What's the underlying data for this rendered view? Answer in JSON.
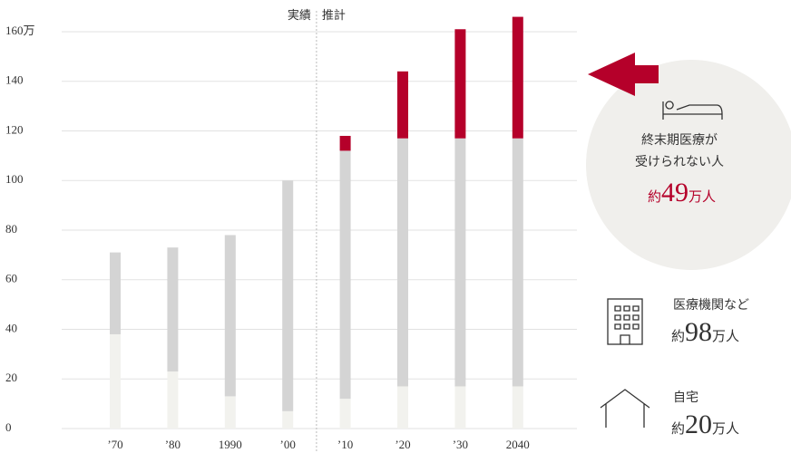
{
  "chart_data": {
    "type": "stacked_bar",
    "categories": [
      "’70",
      "’80",
      "1990",
      "’00",
      "’10",
      "’20",
      "’30",
      "2040"
    ],
    "series": [
      {
        "name": "自宅",
        "color": "#f2f2ee",
        "values": [
          38,
          23,
          13,
          7,
          12,
          17,
          17,
          17
        ],
        "note": {
          "prefix": "約",
          "number": 20,
          "unit": "万人"
        }
      },
      {
        "name": "医療機関など",
        "color": "#d4d4d4",
        "values": [
          33,
          50,
          65,
          93,
          100,
          100,
          100,
          100
        ],
        "note": {
          "prefix": "約",
          "number": 98,
          "unit": "万人"
        }
      },
      {
        "name": "終末期医療が\n受けられない人",
        "color": "#b5002a",
        "values": [
          null,
          null,
          null,
          null,
          6,
          27,
          44,
          49
        ],
        "note": {
          "prefix": "約",
          "number": 49,
          "unit": "万人"
        }
      }
    ],
    "divider": {
      "left": "実績",
      "right": "推計"
    },
    "ylim": [
      0,
      160
    ],
    "yticks": [
      0,
      20,
      40,
      60,
      80,
      100,
      120,
      140,
      {
        "value": 160,
        "label": "160万"
      }
    ],
    "grid": true
  }
}
